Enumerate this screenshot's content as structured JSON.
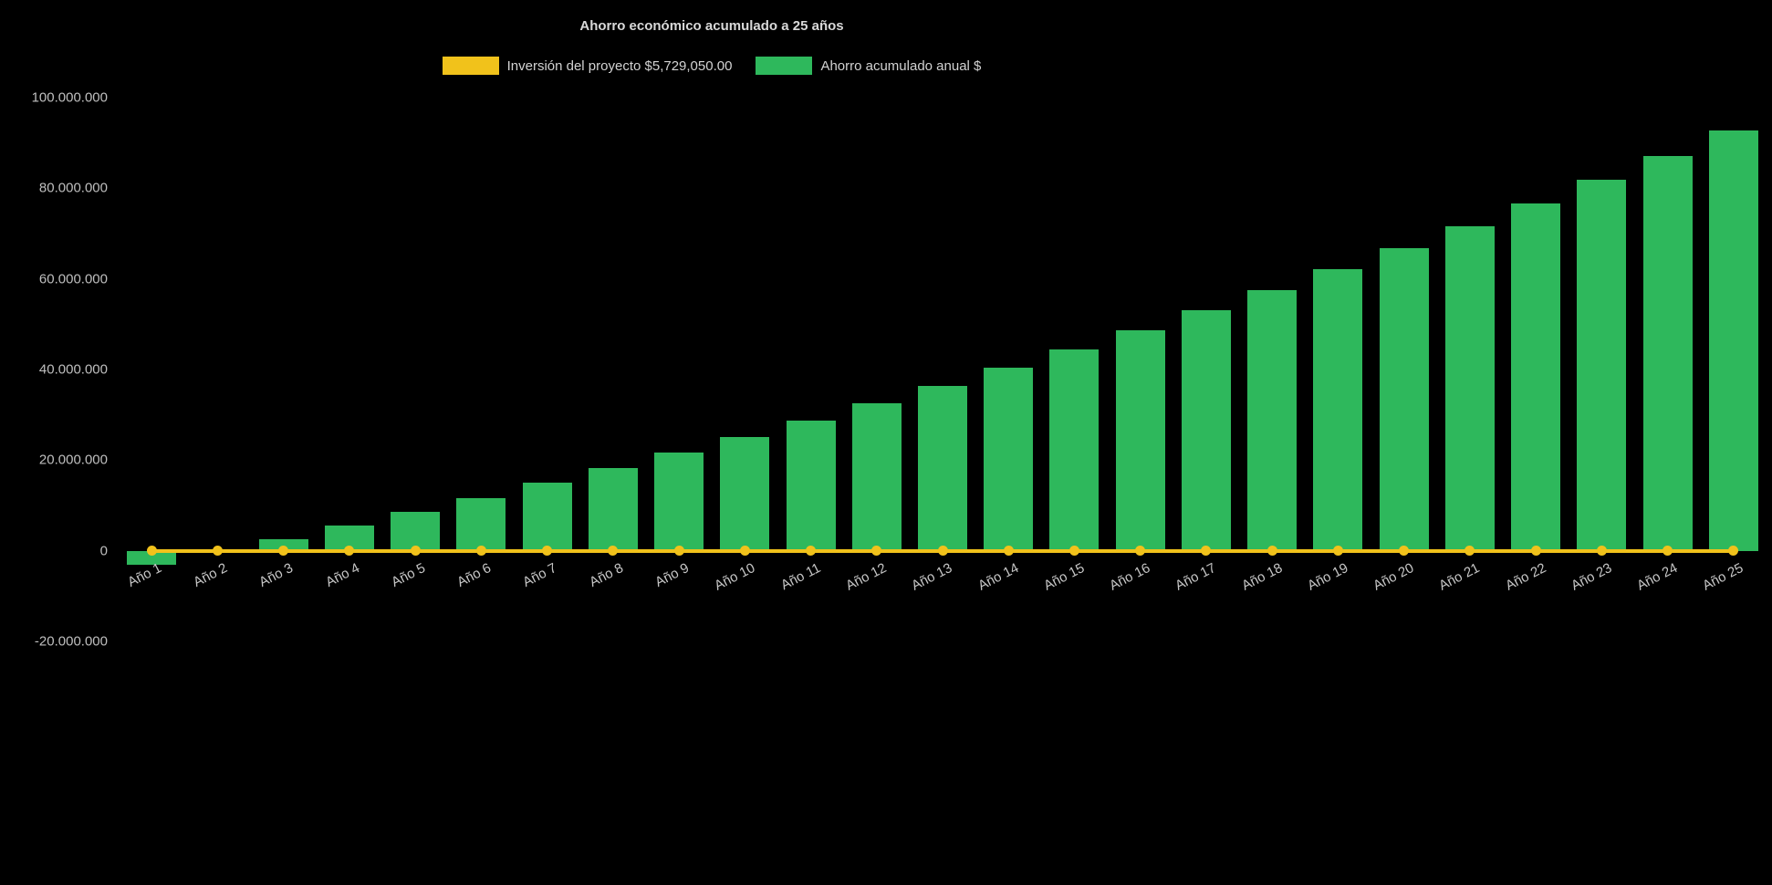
{
  "chart_data": {
    "type": "bar",
    "title": "Ahorro económico acumulado a 25 años",
    "background": "#000000",
    "text_color": "#c6c6c6",
    "legend_position": "top",
    "grid": false,
    "categories": [
      "Año 1",
      "Año 2",
      "Año 3",
      "Año 4",
      "Año 5",
      "Año 6",
      "Año 7",
      "Año 8",
      "Año 9",
      "Año 10",
      "Año 11",
      "Año 12",
      "Año 13",
      "Año 14",
      "Año 15",
      "Año 16",
      "Año 17",
      "Año 18",
      "Año 19",
      "Año 20",
      "Año 21",
      "Año 22",
      "Año 23",
      "Año 24",
      "Año 25"
    ],
    "ylim": [
      -20000000,
      100000000
    ],
    "y_tick_values": [
      -20000000,
      0,
      20000000,
      40000000,
      60000000,
      80000000,
      100000000
    ],
    "y_tick_labels": [
      "-20.000.000",
      "0",
      "20.000.000",
      "40.000.000",
      "60.000.000",
      "80.000.000",
      "100.000.000"
    ],
    "series": [
      {
        "name": "Inversión del proyecto $5,729,050.00",
        "type": "line",
        "color": "#f1c21b",
        "investment_amount_label": "$5,729,050.00",
        "values": [
          0,
          0,
          0,
          0,
          0,
          0,
          0,
          0,
          0,
          0,
          0,
          0,
          0,
          0,
          0,
          0,
          0,
          0,
          0,
          0,
          0,
          0,
          0,
          0,
          0
        ]
      },
      {
        "name": "Ahorro acumulado anual $",
        "type": "bar",
        "color": "#2eb85c",
        "values": [
          -3000000,
          -300000,
          2600000,
          5600000,
          8600000,
          11700000,
          15000000,
          18300000,
          21700000,
          25200000,
          28800000,
          32600000,
          36400000,
          40400000,
          44500000,
          48700000,
          53000000,
          57500000,
          62100000,
          66800000,
          71700000,
          76700000,
          81900000,
          87200000,
          92700000
        ]
      }
    ]
  }
}
